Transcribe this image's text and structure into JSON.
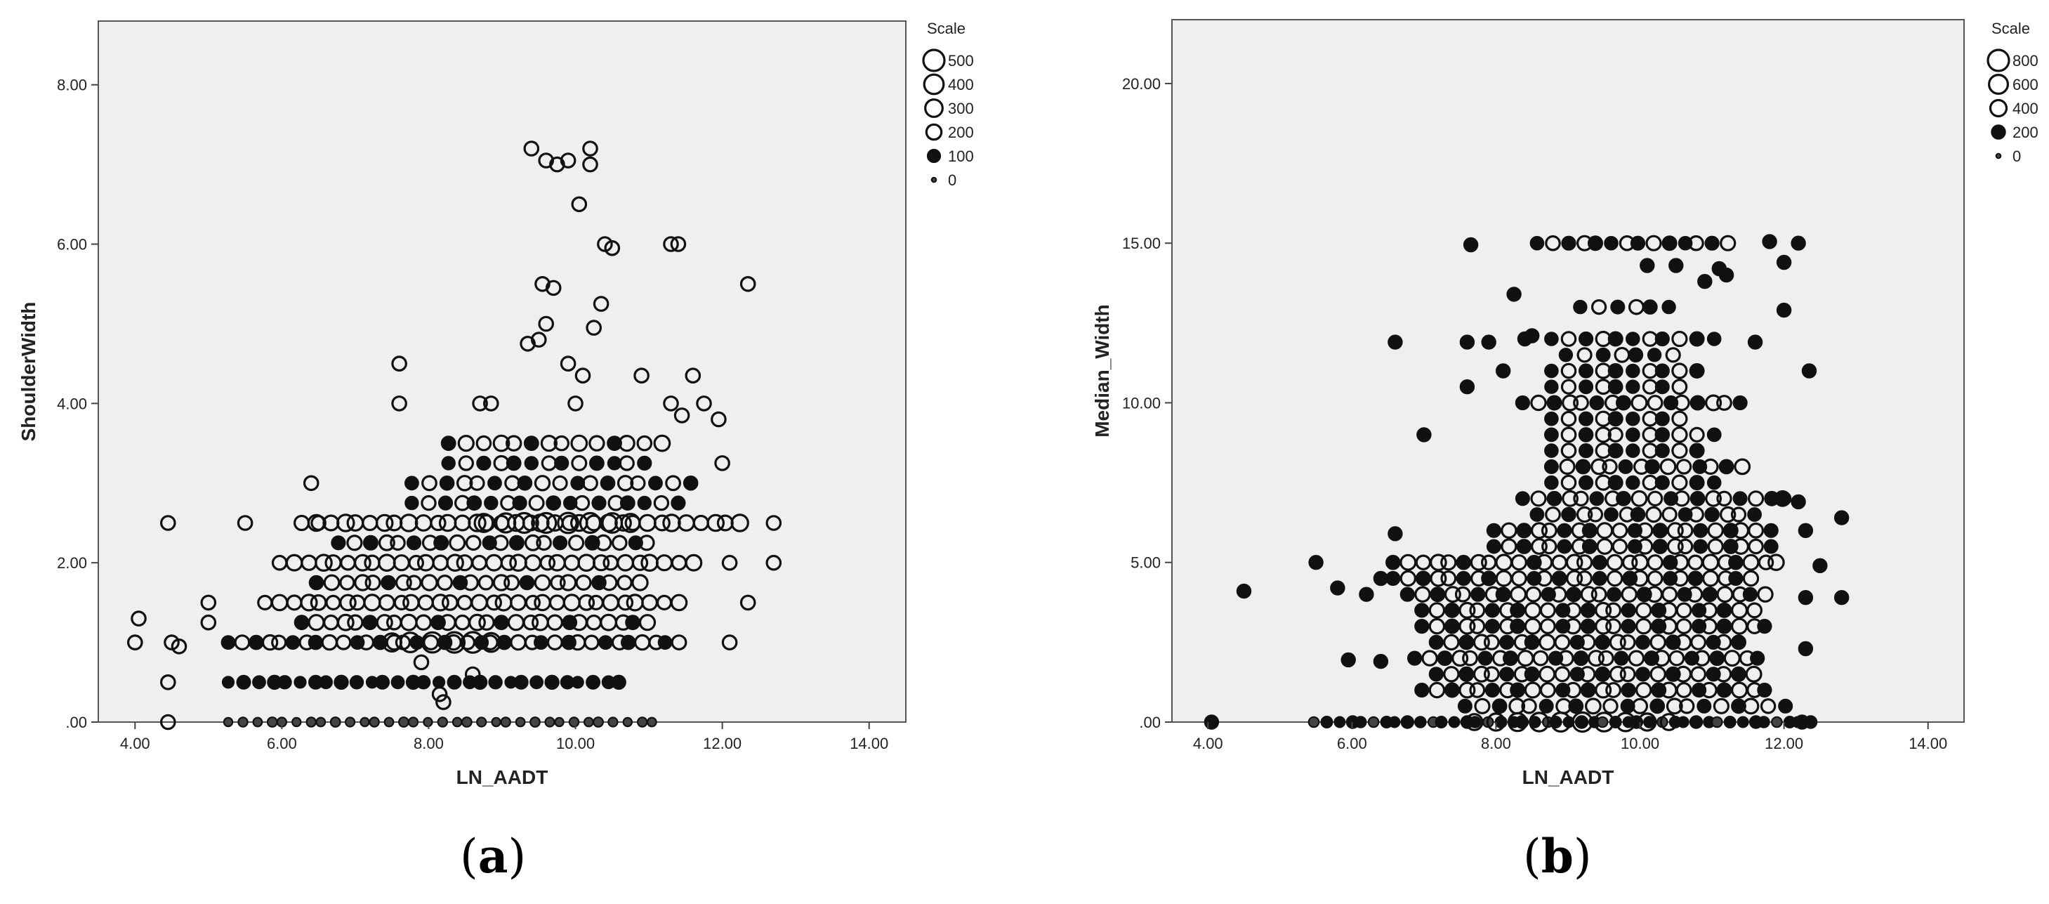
{
  "chart_data": [
    {
      "type": "scatter",
      "encoding": "bubble",
      "panel_label": "a",
      "title": "",
      "xlabel": "LN_AADT",
      "ylabel": "ShoulderWidth",
      "xlim": [
        3.5,
        14.5
      ],
      "ylim": [
        0,
        8.8
      ],
      "x_ticks": [
        4,
        6,
        8,
        10,
        12,
        14
      ],
      "x_tick_labels": [
        "4.00",
        "6.00",
        "8.00",
        "10.00",
        "12.00",
        "14.00"
      ],
      "y_ticks": [
        0,
        2,
        4,
        6,
        8
      ],
      "y_tick_labels": [
        ".00",
        "2.00",
        "4.00",
        "6.00",
        "8.00"
      ],
      "grid": false,
      "legend": {
        "title": "Scale",
        "placement": "top-right",
        "values": [
          500,
          400,
          300,
          200,
          100,
          0
        ],
        "labels": [
          "500",
          "400",
          "300",
          "200",
          "100",
          "0"
        ]
      },
      "bands": [
        {
          "y": 0,
          "x_min": 5.3,
          "x_max": 11.1,
          "step": 0.18,
          "scale": 40
        },
        {
          "y": 0.5,
          "x_min": 5.3,
          "x_max": 10.8,
          "step": 0.19,
          "scale": 110
        },
        {
          "y": 1.0,
          "x_min": 5.3,
          "x_max": 11.5,
          "step": 0.17,
          "scale": 150
        },
        {
          "y": 1.25,
          "x_min": 6.3,
          "x_max": 11.0,
          "step": 0.18,
          "scale": 180
        },
        {
          "y": 1.5,
          "x_min": 5.8,
          "x_max": 11.4,
          "step": 0.18,
          "scale": 190
        },
        {
          "y": 1.75,
          "x_min": 6.5,
          "x_max": 11.0,
          "step": 0.19,
          "scale": 170
        },
        {
          "y": 2.0,
          "x_min": 6.0,
          "x_max": 11.7,
          "step": 0.18,
          "scale": 200
        },
        {
          "y": 2.25,
          "x_min": 6.8,
          "x_max": 11.0,
          "step": 0.2,
          "scale": 160
        },
        {
          "y": 2.5,
          "x_min": 6.3,
          "x_max": 12.3,
          "step": 0.18,
          "scale": 220
        },
        {
          "y": 2.75,
          "x_min": 7.8,
          "x_max": 11.5,
          "step": 0.21,
          "scale": 140
        },
        {
          "y": 3.0,
          "x_min": 7.8,
          "x_max": 11.6,
          "step": 0.22,
          "scale": 150
        },
        {
          "y": 3.25,
          "x_min": 8.3,
          "x_max": 11.0,
          "step": 0.22,
          "scale": 140
        },
        {
          "y": 3.5,
          "x_min": 8.3,
          "x_max": 11.2,
          "step": 0.22,
          "scale": 180
        }
      ],
      "points": [
        {
          "x": 4.0,
          "y": 1.0,
          "scale": 150
        },
        {
          "x": 4.05,
          "y": 1.3,
          "scale": 150
        },
        {
          "x": 4.45,
          "y": 2.5,
          "scale": 150
        },
        {
          "x": 4.45,
          "y": 0.5,
          "scale": 150
        },
        {
          "x": 4.5,
          "y": 1.0,
          "scale": 150
        },
        {
          "x": 4.6,
          "y": 0.95,
          "scale": 150
        },
        {
          "x": 4.45,
          "y": 0.0,
          "scale": 150
        },
        {
          "x": 5.0,
          "y": 1.5,
          "scale": 150
        },
        {
          "x": 5.0,
          "y": 1.25,
          "scale": 150
        },
        {
          "x": 5.5,
          "y": 2.5,
          "scale": 150
        },
        {
          "x": 6.4,
          "y": 3.0,
          "scale": 150
        },
        {
          "x": 6.5,
          "y": 2.5,
          "scale": 150
        },
        {
          "x": 12.0,
          "y": 3.25,
          "scale": 150
        },
        {
          "x": 12.1,
          "y": 2.0,
          "scale": 150
        },
        {
          "x": 12.1,
          "y": 1.0,
          "scale": 150
        },
        {
          "x": 12.35,
          "y": 1.5,
          "scale": 150
        },
        {
          "x": 12.35,
          "y": 5.5,
          "scale": 150
        },
        {
          "x": 12.7,
          "y": 2.5,
          "scale": 150
        },
        {
          "x": 12.7,
          "y": 2.0,
          "scale": 150
        },
        {
          "x": 7.6,
          "y": 4.5,
          "scale": 150
        },
        {
          "x": 7.6,
          "y": 4.0,
          "scale": 150
        },
        {
          "x": 8.7,
          "y": 4.0,
          "scale": 150
        },
        {
          "x": 8.85,
          "y": 4.0,
          "scale": 150
        },
        {
          "x": 9.35,
          "y": 4.75,
          "scale": 150
        },
        {
          "x": 9.5,
          "y": 4.8,
          "scale": 150
        },
        {
          "x": 9.6,
          "y": 5.0,
          "scale": 150
        },
        {
          "x": 9.55,
          "y": 5.5,
          "scale": 150
        },
        {
          "x": 9.7,
          "y": 5.45,
          "scale": 150
        },
        {
          "x": 9.9,
          "y": 4.5,
          "scale": 150
        },
        {
          "x": 10.0,
          "y": 4.0,
          "scale": 150
        },
        {
          "x": 10.25,
          "y": 4.95,
          "scale": 150
        },
        {
          "x": 10.35,
          "y": 5.25,
          "scale": 150
        },
        {
          "x": 10.4,
          "y": 6.0,
          "scale": 150
        },
        {
          "x": 10.5,
          "y": 5.95,
          "scale": 150
        },
        {
          "x": 10.05,
          "y": 6.5,
          "scale": 150
        },
        {
          "x": 10.9,
          "y": 4.35,
          "scale": 150
        },
        {
          "x": 11.3,
          "y": 6.0,
          "scale": 150
        },
        {
          "x": 11.4,
          "y": 6.0,
          "scale": 150
        },
        {
          "x": 11.3,
          "y": 4.0,
          "scale": 150
        },
        {
          "x": 11.45,
          "y": 3.85,
          "scale": 150
        },
        {
          "x": 11.6,
          "y": 4.35,
          "scale": 150
        },
        {
          "x": 11.75,
          "y": 4.0,
          "scale": 150
        },
        {
          "x": 11.95,
          "y": 3.8,
          "scale": 150
        },
        {
          "x": 9.4,
          "y": 7.2,
          "scale": 150
        },
        {
          "x": 9.6,
          "y": 7.05,
          "scale": 150
        },
        {
          "x": 9.75,
          "y": 7.0,
          "scale": 150
        },
        {
          "x": 9.9,
          "y": 7.05,
          "scale": 150
        },
        {
          "x": 10.2,
          "y": 7.0,
          "scale": 150
        },
        {
          "x": 10.2,
          "y": 7.2,
          "scale": 150
        },
        {
          "x": 10.1,
          "y": 4.35,
          "scale": 150
        },
        {
          "x": 8.2,
          "y": 0.25,
          "scale": 150
        },
        {
          "x": 7.9,
          "y": 0.75,
          "scale": 150
        },
        {
          "x": 8.6,
          "y": 0.6,
          "scale": 150
        },
        {
          "x": 8.15,
          "y": 0.35,
          "scale": 150
        },
        {
          "x": 9.3,
          "y": 2.5,
          "scale": 420
        },
        {
          "x": 9.6,
          "y": 2.5,
          "scale": 420
        },
        {
          "x": 9.9,
          "y": 2.5,
          "scale": 440
        },
        {
          "x": 10.2,
          "y": 2.5,
          "scale": 420
        },
        {
          "x": 10.5,
          "y": 2.5,
          "scale": 400
        },
        {
          "x": 9.05,
          "y": 2.5,
          "scale": 380
        },
        {
          "x": 8.75,
          "y": 2.5,
          "scale": 330
        },
        {
          "x": 10.75,
          "y": 2.5,
          "scale": 330
        },
        {
          "x": 8.35,
          "y": 1.0,
          "scale": 460
        },
        {
          "x": 8.6,
          "y": 1.0,
          "scale": 470
        },
        {
          "x": 8.05,
          "y": 1.0,
          "scale": 440
        },
        {
          "x": 7.75,
          "y": 1.0,
          "scale": 400
        },
        {
          "x": 7.5,
          "y": 1.0,
          "scale": 330
        },
        {
          "x": 8.85,
          "y": 1.0,
          "scale": 360
        }
      ]
    },
    {
      "type": "scatter",
      "encoding": "bubble",
      "panel_label": "b",
      "title": "",
      "xlabel": "LN_AADT",
      "ylabel": "Median_Width",
      "xlim": [
        3.5,
        14.5
      ],
      "ylim": [
        0,
        22
      ],
      "x_ticks": [
        4,
        6,
        8,
        10,
        12,
        14
      ],
      "x_tick_labels": [
        "4.00",
        "6.00",
        "8.00",
        "10.00",
        "12.00",
        "14.00"
      ],
      "y_ticks": [
        0,
        5,
        10,
        15,
        20
      ],
      "y_tick_labels": [
        ".00",
        "5.00",
        "10.00",
        "15.00",
        "20.00"
      ],
      "grid": false,
      "legend": {
        "title": "Scale",
        "placement": "top-right",
        "values": [
          800,
          600,
          400,
          200,
          0
        ],
        "labels": [
          "800",
          "600",
          "400",
          "200",
          "0"
        ]
      },
      "bands": [
        {
          "y": 0.0,
          "x_min": 5.5,
          "x_max": 12.4,
          "step": 0.16,
          "scale": 120
        },
        {
          "y": 0.5,
          "x_min": 7.6,
          "x_max": 12.0,
          "step": 0.22,
          "scale": 250
        },
        {
          "y": 1.0,
          "x_min": 7.0,
          "x_max": 11.8,
          "step": 0.19,
          "scale": 260
        },
        {
          "y": 1.5,
          "x_min": 7.2,
          "x_max": 11.6,
          "step": 0.19,
          "scale": 260
        },
        {
          "y": 2.0,
          "x_min": 6.9,
          "x_max": 11.8,
          "step": 0.19,
          "scale": 260
        },
        {
          "y": 2.5,
          "x_min": 7.2,
          "x_max": 11.5,
          "step": 0.19,
          "scale": 260
        },
        {
          "y": 3.0,
          "x_min": 7.0,
          "x_max": 11.8,
          "step": 0.19,
          "scale": 260
        },
        {
          "y": 3.5,
          "x_min": 7.0,
          "x_max": 11.6,
          "step": 0.19,
          "scale": 260
        },
        {
          "y": 4.0,
          "x_min": 6.8,
          "x_max": 11.8,
          "step": 0.19,
          "scale": 260
        },
        {
          "y": 4.5,
          "x_min": 6.6,
          "x_max": 11.6,
          "step": 0.19,
          "scale": 260
        },
        {
          "y": 5.0,
          "x_min": 6.6,
          "x_max": 12.0,
          "step": 0.19,
          "scale": 280
        },
        {
          "y": 5.5,
          "x_min": 8.0,
          "x_max": 11.8,
          "step": 0.19,
          "scale": 250
        },
        {
          "y": 6.0,
          "x_min": 8.0,
          "x_max": 11.8,
          "step": 0.19,
          "scale": 260
        },
        {
          "y": 6.5,
          "x_min": 8.6,
          "x_max": 11.6,
          "step": 0.2,
          "scale": 240
        },
        {
          "y": 7.0,
          "x_min": 8.4,
          "x_max": 12.0,
          "step": 0.2,
          "scale": 250
        },
        {
          "y": 7.5,
          "x_min": 8.8,
          "x_max": 11.2,
          "step": 0.22,
          "scale": 230
        },
        {
          "y": 8.0,
          "x_min": 8.8,
          "x_max": 11.4,
          "step": 0.2,
          "scale": 250
        },
        {
          "y": 8.5,
          "x_min": 8.8,
          "x_max": 10.8,
          "step": 0.22,
          "scale": 230
        },
        {
          "y": 9.0,
          "x_min": 8.8,
          "x_max": 11.0,
          "step": 0.22,
          "scale": 240
        },
        {
          "y": 9.5,
          "x_min": 8.8,
          "x_max": 10.6,
          "step": 0.22,
          "scale": 230
        },
        {
          "y": 10.0,
          "x_min": 8.4,
          "x_max": 11.4,
          "step": 0.2,
          "scale": 260
        },
        {
          "y": 10.5,
          "x_min": 8.8,
          "x_max": 10.6,
          "step": 0.22,
          "scale": 220
        },
        {
          "y": 11.0,
          "x_min": 8.8,
          "x_max": 10.8,
          "step": 0.22,
          "scale": 230
        },
        {
          "y": 11.5,
          "x_min": 9.0,
          "x_max": 10.6,
          "step": 0.24,
          "scale": 220
        },
        {
          "y": 12.0,
          "x_min": 8.8,
          "x_max": 11.2,
          "step": 0.22,
          "scale": 230
        },
        {
          "y": 13.0,
          "x_min": 9.2,
          "x_max": 10.6,
          "step": 0.24,
          "scale": 220
        },
        {
          "y": 15.0,
          "x_min": 8.6,
          "x_max": 11.2,
          "step": 0.2,
          "scale": 230
        }
      ],
      "points": [
        {
          "x": 4.05,
          "y": 0.0,
          "scale": 200
        },
        {
          "x": 4.5,
          "y": 4.1,
          "scale": 200
        },
        {
          "x": 5.5,
          "y": 5.0,
          "scale": 200
        },
        {
          "x": 5.8,
          "y": 4.2,
          "scale": 200
        },
        {
          "x": 5.95,
          "y": 1.95,
          "scale": 200
        },
        {
          "x": 6.2,
          "y": 4.0,
          "scale": 200
        },
        {
          "x": 6.4,
          "y": 4.5,
          "scale": 200
        },
        {
          "x": 6.6,
          "y": 5.9,
          "scale": 200
        },
        {
          "x": 6.6,
          "y": 11.9,
          "scale": 200
        },
        {
          "x": 6.4,
          "y": 1.9,
          "scale": 200
        },
        {
          "x": 7.0,
          "y": 9.0,
          "scale": 200
        },
        {
          "x": 7.6,
          "y": 10.5,
          "scale": 200
        },
        {
          "x": 7.6,
          "y": 11.9,
          "scale": 200
        },
        {
          "x": 7.65,
          "y": 14.95,
          "scale": 200
        },
        {
          "x": 7.9,
          "y": 11.9,
          "scale": 200
        },
        {
          "x": 8.1,
          "y": 11.0,
          "scale": 200
        },
        {
          "x": 8.25,
          "y": 13.4,
          "scale": 200
        },
        {
          "x": 8.4,
          "y": 12.0,
          "scale": 200
        },
        {
          "x": 8.5,
          "y": 12.1,
          "scale": 200
        },
        {
          "x": 12.2,
          "y": 15.0,
          "scale": 200
        },
        {
          "x": 12.0,
          "y": 14.4,
          "scale": 200
        },
        {
          "x": 12.0,
          "y": 12.9,
          "scale": 200
        },
        {
          "x": 12.35,
          "y": 11.0,
          "scale": 200
        },
        {
          "x": 11.6,
          "y": 11.9,
          "scale": 200
        },
        {
          "x": 11.8,
          "y": 15.05,
          "scale": 200
        },
        {
          "x": 11.2,
          "y": 14.0,
          "scale": 200
        },
        {
          "x": 11.1,
          "y": 14.2,
          "scale": 200
        },
        {
          "x": 10.9,
          "y": 13.8,
          "scale": 200
        },
        {
          "x": 10.5,
          "y": 14.3,
          "scale": 200
        },
        {
          "x": 10.1,
          "y": 14.3,
          "scale": 200
        },
        {
          "x": 12.3,
          "y": 6.0,
          "scale": 200
        },
        {
          "x": 12.5,
          "y": 4.9,
          "scale": 200
        },
        {
          "x": 12.3,
          "y": 3.9,
          "scale": 200
        },
        {
          "x": 12.8,
          "y": 6.4,
          "scale": 200
        },
        {
          "x": 12.8,
          "y": 3.9,
          "scale": 200
        },
        {
          "x": 12.2,
          "y": 6.9,
          "scale": 200
        },
        {
          "x": 12.0,
          "y": 7.0,
          "scale": 200
        },
        {
          "x": 12.3,
          "y": 2.3,
          "scale": 200
        },
        {
          "x": 12.25,
          "y": 0.0,
          "scale": 200
        },
        {
          "x": 8.3,
          "y": 0.0,
          "scale": 520
        },
        {
          "x": 8.6,
          "y": 0.0,
          "scale": 560
        },
        {
          "x": 8.9,
          "y": 0.0,
          "scale": 600
        },
        {
          "x": 9.2,
          "y": 0.0,
          "scale": 620
        },
        {
          "x": 9.5,
          "y": 0.0,
          "scale": 580
        },
        {
          "x": 9.8,
          "y": 0.0,
          "scale": 540
        },
        {
          "x": 8.0,
          "y": 0.0,
          "scale": 450
        },
        {
          "x": 10.1,
          "y": 0.0,
          "scale": 450
        },
        {
          "x": 7.7,
          "y": 0.0,
          "scale": 380
        },
        {
          "x": 10.4,
          "y": 0.0,
          "scale": 380
        }
      ]
    }
  ],
  "captions": {
    "a": "a",
    "b": "b"
  }
}
